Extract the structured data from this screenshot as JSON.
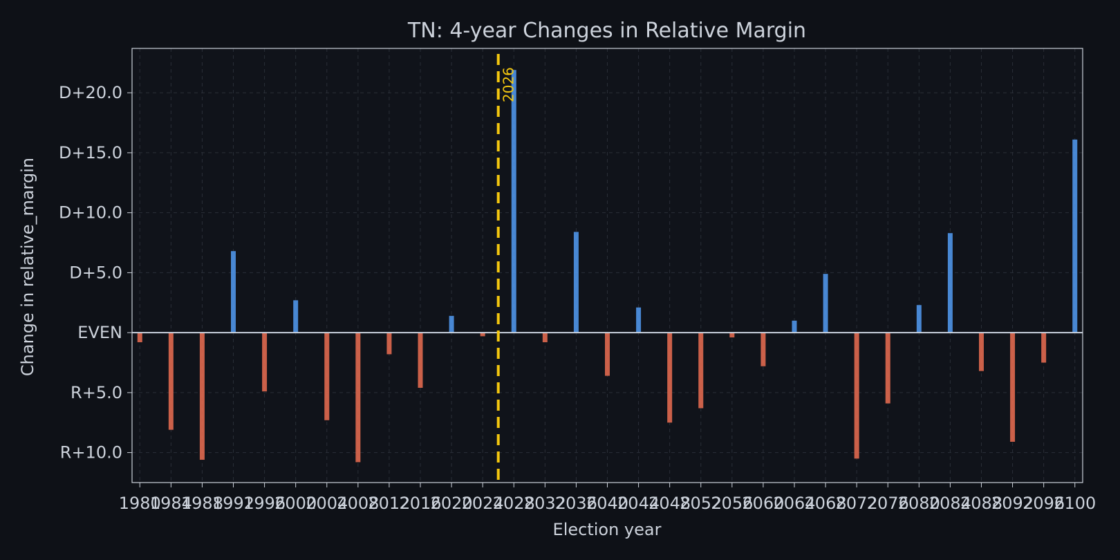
{
  "colors": {
    "background": "#0e1117",
    "plot_background": "#10131a",
    "text": "#cdd3dc",
    "grid": "#2a2f38",
    "zero_line": "#c8d0dc",
    "positive": "#4f95e8",
    "negative": "#e0694f",
    "marker": "#f4c70f"
  },
  "chart_data": {
    "type": "bar",
    "title": "TN: 4-year Changes in Relative Margin",
    "xlabel": "Election year",
    "ylabel": "Change in relative_margin",
    "x": [
      1980,
      1984,
      1988,
      1992,
      1996,
      2000,
      2004,
      2008,
      2012,
      2016,
      2020,
      2024,
      2028,
      2032,
      2036,
      2040,
      2044,
      2048,
      2052,
      2056,
      2060,
      2064,
      2068,
      2072,
      2076,
      2080,
      2084,
      2088,
      2092,
      2096,
      2100
    ],
    "values": [
      -0.8,
      -8.1,
      -10.6,
      6.8,
      -4.9,
      2.7,
      -7.3,
      -10.8,
      -1.8,
      -4.6,
      1.4,
      -0.3,
      21.9,
      -0.8,
      8.4,
      -3.6,
      2.1,
      -7.5,
      -6.3,
      -0.4,
      -2.8,
      1.0,
      4.9,
      -10.5,
      -5.9,
      2.3,
      8.3,
      -3.2,
      -9.1,
      -2.5,
      16.1
    ],
    "xlim": [
      1979,
      2101
    ],
    "ylim": [
      -12.5,
      23.7
    ],
    "yticks": [
      -10,
      -5,
      0,
      5,
      10,
      15,
      20
    ],
    "ytick_labels": [
      "R+10.0",
      "R+5.0",
      "EVEN",
      "D+5.0",
      "D+10.0",
      "D+15.0",
      "D+20.0"
    ],
    "xticks": [
      1980,
      1984,
      1988,
      1992,
      1996,
      2000,
      2004,
      2008,
      2012,
      2016,
      2020,
      2024,
      2028,
      2032,
      2036,
      2040,
      2044,
      2048,
      2052,
      2056,
      2060,
      2064,
      2068,
      2072,
      2076,
      2080,
      2084,
      2088,
      2092,
      2096,
      2100
    ],
    "xtick_labels": [
      "1980",
      "1984",
      "1988",
      "1992",
      "1996",
      "2000",
      "2004",
      "2008",
      "2012",
      "2016",
      "2020",
      "2024",
      "2028",
      "2032",
      "2036",
      "2040",
      "2044",
      "2048",
      "2052",
      "2056",
      "2060",
      "2064",
      "2068",
      "2072",
      "2076",
      "2080",
      "2084",
      "2088",
      "2092",
      "2096",
      "2100"
    ],
    "reference_line": {
      "x": 2026,
      "label": "2026",
      "style": "dashed"
    },
    "grid": true,
    "legend": "none"
  }
}
